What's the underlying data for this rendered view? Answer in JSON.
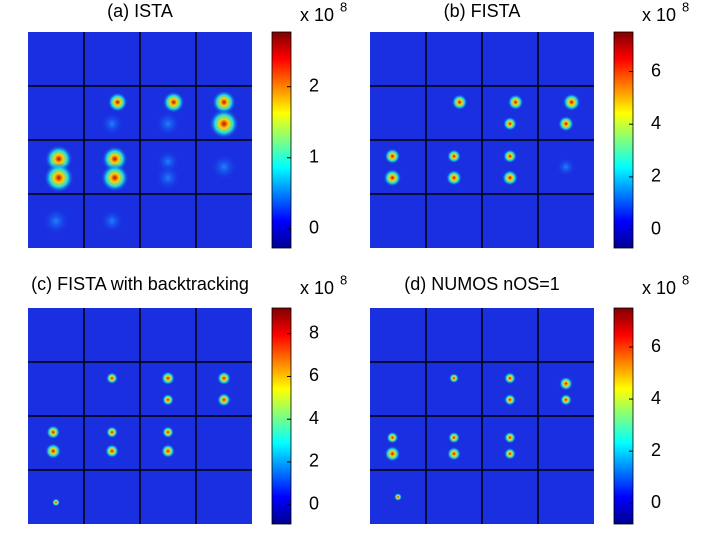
{
  "panels": [
    {
      "title": "(a) ISTA",
      "exponent_base": "x 10",
      "exponent": "8",
      "clim": [
        -0.27,
        2.77
      ],
      "cticks": [
        0,
        1,
        2
      ]
    },
    {
      "title": "(b) FISTA",
      "exponent_base": "x 10",
      "exponent": "8",
      "clim": [
        -0.7,
        7.5
      ],
      "cticks": [
        0,
        2,
        4,
        6
      ]
    },
    {
      "title": "(c) FISTA with backtracking",
      "exponent_base": "x 10",
      "exponent": "8",
      "clim": [
        -0.9,
        9.2
      ],
      "cticks": [
        0,
        2,
        4,
        6,
        8
      ]
    },
    {
      "title": "(d) NUMOS nOS=1",
      "exponent_base": "x 10",
      "exponent": "8",
      "clim": [
        -0.8,
        7.5
      ],
      "cticks": [
        0,
        2,
        4,
        6
      ]
    }
  ]
}
